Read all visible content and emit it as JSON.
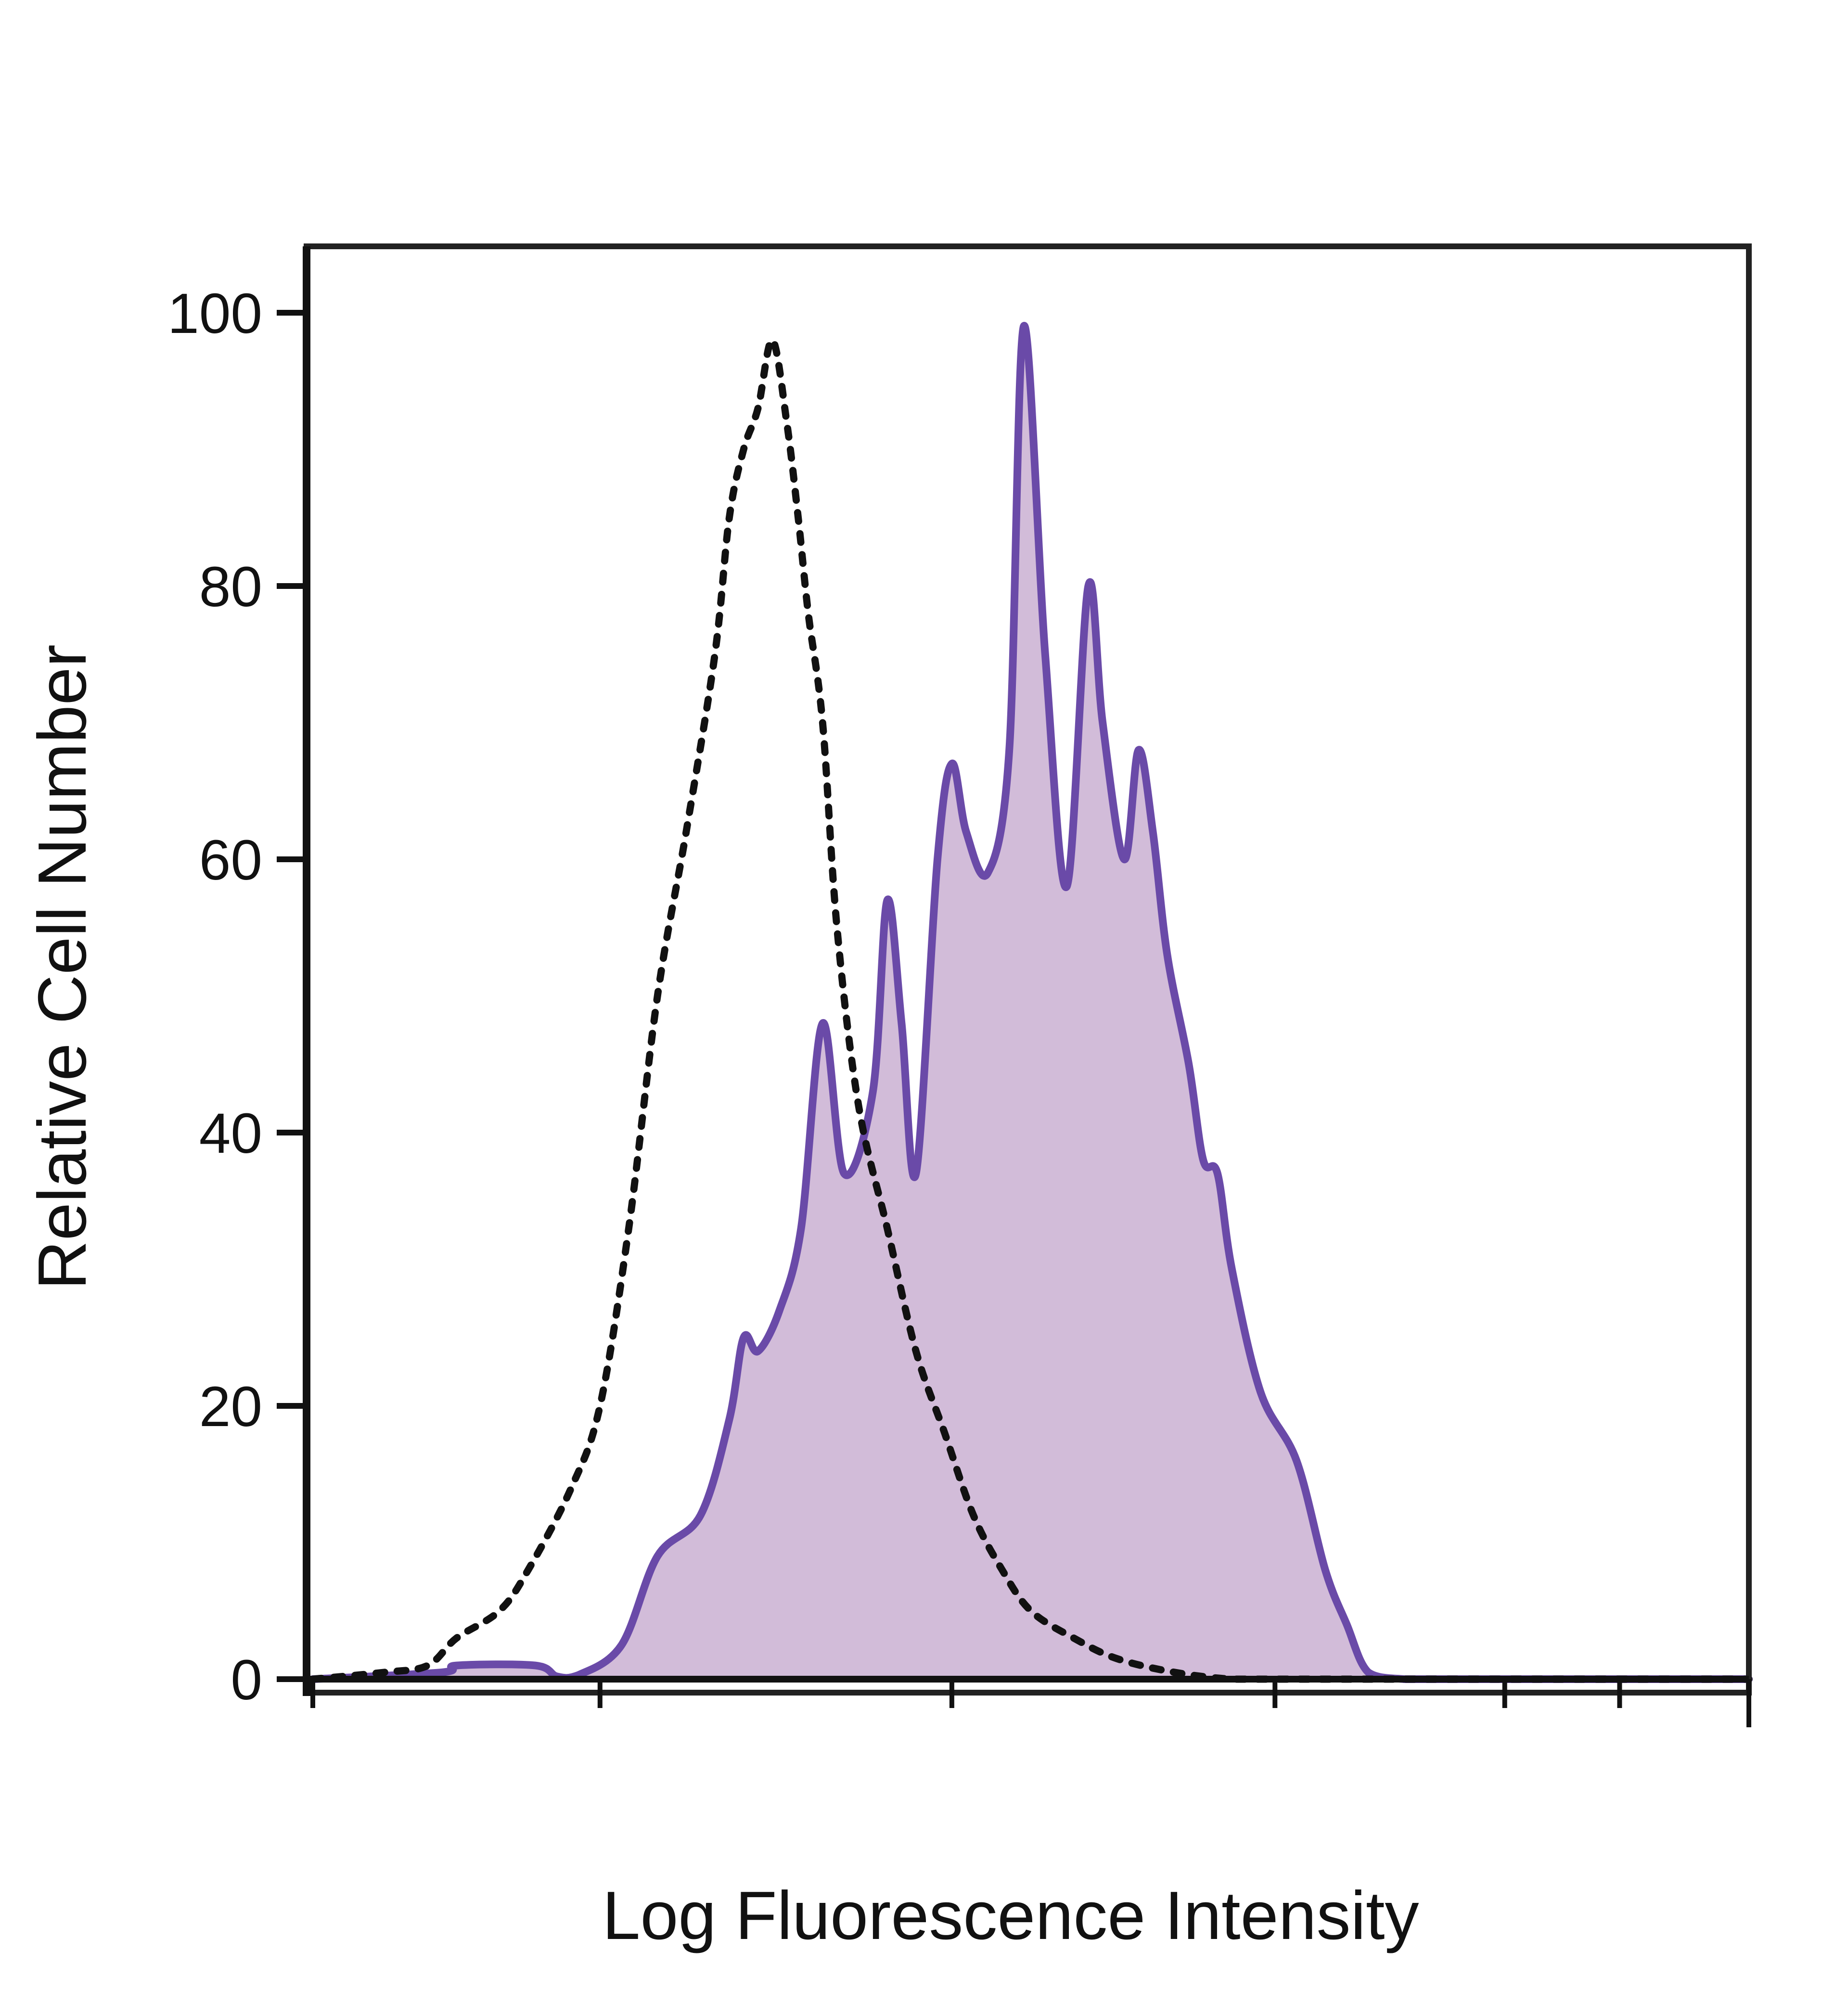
{
  "chart_data": {
    "type": "area",
    "title": "",
    "xlabel": "Log Fluorescence Intensity",
    "ylabel": "Relative Cell Number",
    "xlim": [
      0,
      100
    ],
    "ylim": [
      0,
      100
    ],
    "yticks": [
      0,
      20,
      40,
      60,
      80,
      100
    ],
    "ytick_labels": [
      "0",
      "20",
      "40",
      "60",
      "80",
      "100"
    ],
    "xticks": [
      0,
      20,
      44.5,
      67,
      83,
      91,
      100
    ],
    "xtick_labels": [],
    "grid": false,
    "legend": "none",
    "series": [
      {
        "style": "filled-solid",
        "color": "#6a4aa8",
        "fill": "#d2bcd9",
        "x": [
          0,
          9,
          10,
          15.5,
          17,
          18.5,
          21.5,
          24,
          27,
          29,
          30,
          31,
          32.5,
          34,
          35.5,
          37,
          39,
          40,
          41,
          42,
          43.5,
          44.5,
          45.5,
          47,
          48.5,
          49.5,
          51,
          52.5,
          54,
          55,
          56.5,
          57.5,
          58.5,
          59.5,
          61,
          62,
          63,
          64,
          66,
          68.5,
          70.5,
          72,
          73.5,
          76,
          78,
          80,
          83,
          85,
          88,
          91,
          94,
          100
        ],
        "y": [
          0,
          0.5,
          1,
          1,
          0.2,
          0.3,
          2.5,
          9,
          12,
          19,
          25,
          24,
          27,
          33,
          48,
          37,
          43,
          57,
          48,
          37,
          60,
          67,
          62,
          59,
          68,
          99,
          75,
          58,
          80,
          70,
          60,
          68,
          62,
          53,
          45,
          38,
          37,
          30,
          21,
          16,
          8,
          4,
          0.5,
          0,
          0,
          0,
          0,
          0,
          0,
          0,
          0,
          0
        ]
      },
      {
        "style": "dotted",
        "color": "#111111",
        "x": [
          0,
          5,
          8,
          10,
          13,
          15,
          18,
          20,
          22,
          24,
          26,
          28,
          29,
          30,
          31,
          32,
          33,
          33.8,
          34.5,
          35.5,
          36.5,
          38,
          40,
          42,
          44,
          46,
          48,
          50,
          53,
          56,
          60,
          64,
          68,
          72,
          76,
          80,
          85,
          90,
          100
        ],
        "y": [
          0,
          0.5,
          1,
          3,
          5,
          8,
          14,
          20,
          33,
          50,
          62,
          75,
          85,
          90,
          93,
          98,
          92,
          85,
          78,
          70,
          55,
          42,
          33,
          24,
          18,
          12,
          8,
          5,
          3,
          1.5,
          0.5,
          0,
          0,
          0,
          0,
          0,
          0,
          0,
          0
        ]
      }
    ]
  }
}
